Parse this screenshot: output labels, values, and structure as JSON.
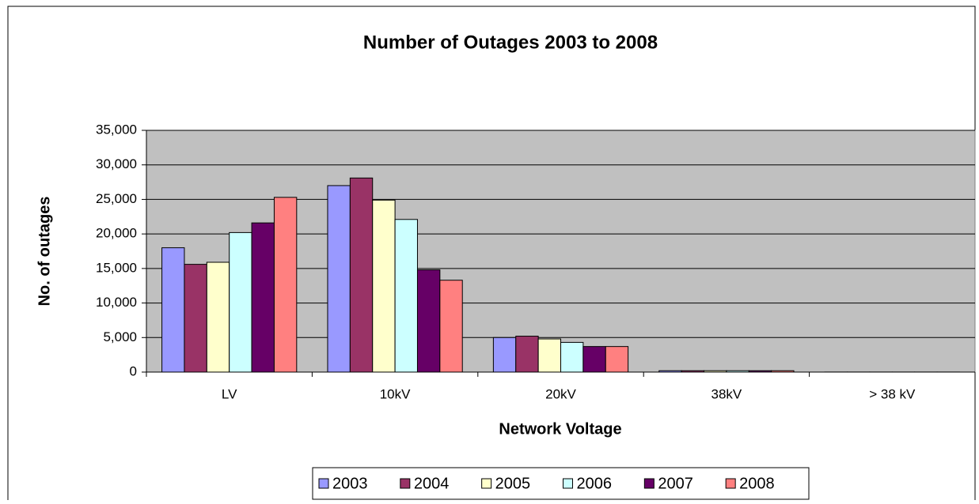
{
  "chart_data": {
    "type": "bar",
    "title": "Number of Outages 2003 to 2008",
    "x_label": "Network Voltage",
    "y_label": "No. of outages",
    "categories": [
      "LV",
      "10kV",
      "20kV",
      "38kV",
      "> 38 kV"
    ],
    "series": [
      {
        "name": "2003",
        "color": "#9999ff",
        "values": [
          18000,
          27000,
          5000,
          200,
          10
        ]
      },
      {
        "name": "2004",
        "color": "#993366",
        "values": [
          15600,
          28100,
          5200,
          200,
          10
        ]
      },
      {
        "name": "2005",
        "color": "#ffffcc",
        "values": [
          15900,
          24900,
          4800,
          200,
          10
        ]
      },
      {
        "name": "2006",
        "color": "#ccffff",
        "values": [
          20200,
          22100,
          4300,
          200,
          10
        ]
      },
      {
        "name": "2007",
        "color": "#660066",
        "values": [
          21600,
          14800,
          3700,
          200,
          10
        ]
      },
      {
        "name": "2008",
        "color": "#ff8080",
        "values": [
          25300,
          13300,
          3700,
          200,
          10
        ]
      }
    ],
    "ylim": [
      0,
      35000
    ],
    "yticks": [
      0,
      {
        "value": 5000,
        "label": "5,000"
      },
      {
        "value": 10000,
        "label": "10,000"
      },
      {
        "value": 15000,
        "label": "15,000"
      },
      {
        "value": 20000,
        "label": "20,000"
      },
      {
        "value": 25000,
        "label": "25,000"
      },
      {
        "value": 30000,
        "label": "30,000"
      },
      {
        "value": 35000,
        "label": "35,000"
      }
    ],
    "grid": true,
    "legend": "bottom"
  }
}
